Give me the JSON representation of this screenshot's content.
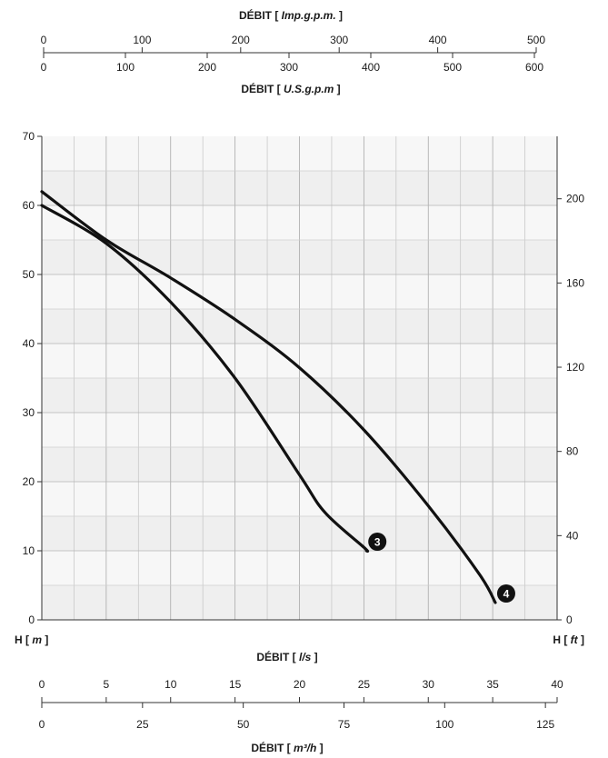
{
  "chart_data": {
    "type": "line",
    "top_axis_1": {
      "title": "DÉBIT",
      "unit": "Imp.g.p.m.",
      "min": 0,
      "max": 500,
      "ticks": [
        0,
        100,
        200,
        300,
        400,
        500
      ]
    },
    "top_axis_2": {
      "title": "DÉBIT",
      "unit": "U.S.g.p.m",
      "min": 0,
      "max": 600,
      "ticks": [
        0,
        100,
        200,
        300,
        400,
        500,
        600
      ]
    },
    "bottom_axis_1": {
      "title": "DÉBIT",
      "unit": "l/s",
      "min": 0,
      "max": 40,
      "ticks": [
        0,
        5,
        10,
        15,
        20,
        25,
        30,
        35,
        40
      ]
    },
    "bottom_axis_2": {
      "title": "DÉBIT",
      "unit": "m³/h",
      "min": 0,
      "max": 125,
      "ticks": [
        0,
        25,
        50,
        75,
        100,
        125
      ]
    },
    "y_left": {
      "label": "H",
      "unit": "m",
      "min": 0,
      "max": 70,
      "ticks": [
        0,
        10,
        20,
        30,
        40,
        50,
        60,
        70
      ]
    },
    "y_right": {
      "label": "H",
      "unit": "ft",
      "min": 0,
      "max": 229.66,
      "ticks": [
        0,
        40,
        80,
        120,
        160,
        200
      ]
    },
    "grid": true,
    "series": [
      {
        "name": "3",
        "x": [
          0,
          5,
          10,
          15,
          20,
          22,
          25,
          25.2
        ],
        "y": [
          60,
          54.5,
          46,
          35,
          21,
          15.5,
          10.5,
          10
        ]
      },
      {
        "name": "4",
        "x": [
          0,
          5,
          10,
          15,
          20,
          25,
          30,
          34.0,
          35.2
        ],
        "y": [
          62,
          55,
          49.5,
          43.5,
          36.5,
          27.5,
          16.5,
          6.5,
          2.5
        ]
      }
    ]
  }
}
